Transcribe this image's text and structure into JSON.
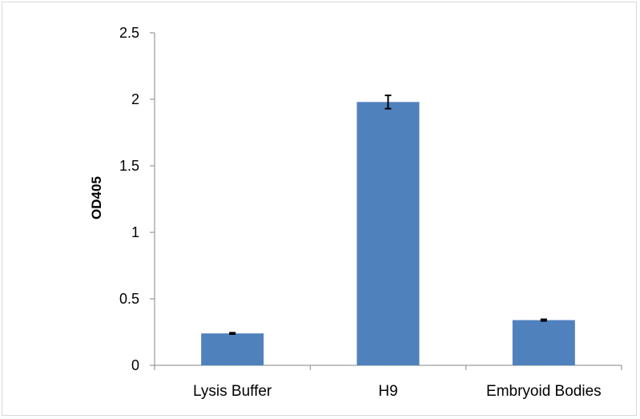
{
  "chart_data": {
    "type": "bar",
    "title": "",
    "xlabel": "",
    "ylabel": "OD405",
    "categories": [
      "Lysis Buffer",
      "H9",
      "Embryoid Bodies"
    ],
    "values": [
      0.24,
      1.98,
      0.34
    ],
    "errors": [
      0.005,
      0.05,
      0.006
    ],
    "ylim": [
      0,
      2.5
    ],
    "yticks": [
      0,
      0.5,
      1,
      1.5,
      2,
      2.5
    ],
    "ytick_labels": [
      "0",
      "0.5",
      "1",
      "1.5",
      "2",
      "2.5"
    ],
    "grid": false,
    "legend": "none",
    "bar_color": "#4f81bd",
    "error_bar_color": "#000000",
    "axis_color": "#868686"
  }
}
